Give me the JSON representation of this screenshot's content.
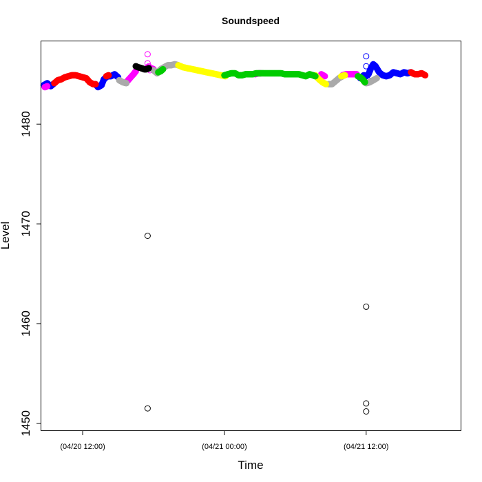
{
  "chart_data": {
    "type": "scatter",
    "title": "Soundspeed",
    "xlabel": "Time",
    "ylabel": "Level",
    "x_unit": "hours",
    "xlim": [
      8.5,
      44.0
    ],
    "ylim": [
      1449.3,
      1488.3
    ],
    "x_ticks": [
      {
        "value": 12,
        "label": "(04/20 12:00)"
      },
      {
        "value": 24,
        "label": "(04/21 00:00)"
      },
      {
        "value": 36,
        "label": "(04/21 12:00)"
      }
    ],
    "y_ticks": [
      {
        "value": 1450,
        "label": "1450"
      },
      {
        "value": 1460,
        "label": "1460"
      },
      {
        "value": 1470,
        "label": "1470"
      },
      {
        "value": 1480,
        "label": "1480"
      }
    ],
    "grid": false,
    "legend": "none",
    "series": [
      {
        "color": "#0000ff",
        "segments": [
          [
            [
              8.7,
              1483.9
            ],
            [
              9.0,
              1484.1
            ],
            [
              9.3,
              1483.8
            ],
            [
              9.6,
              1484.1
            ]
          ],
          [
            [
              13.1,
              1484.0
            ],
            [
              13.3,
              1483.7
            ],
            [
              13.6,
              1483.9
            ],
            [
              13.8,
              1484.5
            ],
            [
              14.1,
              1484.8
            ],
            [
              14.4,
              1484.8
            ],
            [
              14.7,
              1485.0
            ],
            [
              15.0,
              1484.7
            ]
          ],
          [
            [
              35.5,
              1484.6
            ],
            [
              35.8,
              1484.9
            ],
            [
              36.0,
              1484.8
            ],
            [
              36.2,
              1485.0
            ],
            [
              36.4,
              1485.6
            ],
            [
              36.6,
              1486.0
            ],
            [
              36.8,
              1485.8
            ],
            [
              37.1,
              1485.2
            ],
            [
              37.4,
              1484.9
            ],
            [
              37.7,
              1484.8
            ],
            [
              38.0,
              1484.9
            ],
            [
              38.3,
              1485.2
            ],
            [
              38.6,
              1485.1
            ],
            [
              38.9,
              1485.0
            ],
            [
              39.2,
              1485.2
            ],
            [
              39.5,
              1485.1
            ],
            [
              39.8,
              1485.2
            ]
          ]
        ],
        "outliers": [
          [
            36.0,
            1486.8
          ],
          [
            36.0,
            1485.8
          ],
          [
            36.0,
            1484.8
          ],
          [
            36.1,
            1484.5
          ]
        ]
      },
      {
        "color": "#ff0000",
        "segments": [
          [
            [
              9.6,
              1484.1
            ],
            [
              9.9,
              1484.4
            ],
            [
              10.2,
              1484.5
            ],
            [
              10.5,
              1484.7
            ],
            [
              10.8,
              1484.8
            ],
            [
              11.1,
              1484.9
            ],
            [
              11.4,
              1484.9
            ],
            [
              11.7,
              1484.8
            ],
            [
              12.0,
              1484.7
            ],
            [
              12.3,
              1484.6
            ],
            [
              12.6,
              1484.2
            ],
            [
              12.9,
              1484.0
            ],
            [
              13.1,
              1484.0
            ]
          ],
          [
            [
              14.0,
              1484.8
            ],
            [
              14.2,
              1484.9
            ]
          ],
          [
            [
              39.8,
              1485.2
            ],
            [
              40.1,
              1485.0
            ],
            [
              40.4,
              1485.0
            ],
            [
              40.7,
              1485.1
            ],
            [
              41.0,
              1484.9
            ]
          ]
        ],
        "outliers": []
      },
      {
        "color": "#ff00ff",
        "segments": [
          [
            [
              8.8,
              1483.7
            ],
            [
              9.0,
              1483.8
            ]
          ],
          [
            [
              15.7,
              1484.2
            ],
            [
              16.0,
              1484.6
            ],
            [
              16.3,
              1485.0
            ],
            [
              16.5,
              1485.3
            ]
          ],
          [
            [
              17.5,
              1485.7
            ],
            [
              17.8,
              1485.6
            ],
            [
              18.0,
              1485.5
            ]
          ],
          [
            [
              26.6,
              1485.0
            ],
            [
              26.9,
              1485.1
            ],
            [
              27.1,
              1485.1
            ]
          ],
          [
            [
              32.2,
              1485.0
            ],
            [
              32.5,
              1484.8
            ]
          ],
          [
            [
              34.0,
              1484.9
            ],
            [
              34.3,
              1485.0
            ],
            [
              34.6,
              1485.0
            ],
            [
              34.9,
              1485.0
            ],
            [
              35.2,
              1485.0
            ]
          ]
        ],
        "outliers": [
          [
            17.5,
            1487.0
          ],
          [
            17.5,
            1486.1
          ],
          [
            17.6,
            1485.8
          ],
          [
            17.6,
            1485.7
          ],
          [
            17.4,
            1485.6
          ],
          [
            17.7,
            1485.4
          ]
        ]
      },
      {
        "color": "#aaaaaa",
        "segments": [
          [
            [
              15.1,
              1484.4
            ],
            [
              15.4,
              1484.2
            ],
            [
              15.7,
              1484.1
            ]
          ],
          [
            [
              18.0,
              1485.4
            ],
            [
              18.3,
              1485.1
            ],
            [
              18.6,
              1485.5
            ],
            [
              18.9,
              1485.7
            ],
            [
              19.2,
              1485.9
            ],
            [
              19.5,
              1485.9
            ],
            [
              19.8,
              1486.0
            ],
            [
              20.1,
              1485.9
            ]
          ],
          [
            [
              32.8,
              1484.0
            ],
            [
              33.1,
              1484.0
            ],
            [
              33.4,
              1484.3
            ],
            [
              33.7,
              1484.6
            ],
            [
              34.0,
              1484.8
            ]
          ],
          [
            [
              35.8,
              1484.3
            ],
            [
              36.0,
              1484.1
            ],
            [
              36.3,
              1484.2
            ],
            [
              36.6,
              1484.4
            ],
            [
              36.9,
              1484.6
            ]
          ]
        ],
        "outliers": []
      },
      {
        "color": "#000000",
        "segments": [
          [
            [
              16.5,
              1485.8
            ],
            [
              16.7,
              1485.7
            ],
            [
              17.0,
              1485.6
            ],
            [
              17.2,
              1485.5
            ],
            [
              17.4,
              1485.5
            ],
            [
              17.6,
              1485.6
            ]
          ]
        ],
        "outliers": [
          [
            17.5,
            1468.8
          ],
          [
            17.5,
            1451.5
          ],
          [
            36.0,
            1461.7
          ],
          [
            36.0,
            1452.0
          ],
          [
            36.0,
            1451.2
          ]
        ]
      },
      {
        "color": "#ffff00",
        "segments": [
          [
            [
              20.1,
              1485.9
            ],
            [
              20.5,
              1485.7
            ],
            [
              20.9,
              1485.6
            ],
            [
              21.3,
              1485.5
            ],
            [
              21.7,
              1485.4
            ],
            [
              22.1,
              1485.3
            ],
            [
              22.5,
              1485.2
            ],
            [
              22.9,
              1485.1
            ],
            [
              23.3,
              1485.0
            ],
            [
              23.7,
              1484.9
            ],
            [
              24.1,
              1484.8
            ]
          ],
          [
            [
              31.7,
              1484.9
            ],
            [
              32.0,
              1484.5
            ],
            [
              32.3,
              1484.2
            ],
            [
              32.6,
              1484.0
            ]
          ],
          [
            [
              33.9,
              1484.8
            ],
            [
              34.2,
              1484.9
            ]
          ]
        ],
        "outliers": []
      },
      {
        "color": "#00cc00",
        "segments": [
          [
            [
              18.4,
              1485.2
            ],
            [
              18.6,
              1485.3
            ],
            [
              18.8,
              1485.5
            ]
          ],
          [
            [
              24.0,
              1484.9
            ],
            [
              24.3,
              1485.0
            ],
            [
              24.6,
              1485.1
            ],
            [
              24.9,
              1485.1
            ],
            [
              25.2,
              1484.9
            ],
            [
              25.5,
              1484.9
            ],
            [
              25.8,
              1485.0
            ],
            [
              26.1,
              1485.0
            ],
            [
              26.4,
              1485.0
            ],
            [
              26.7,
              1485.1
            ],
            [
              27.0,
              1485.1
            ],
            [
              27.3,
              1485.1
            ],
            [
              27.6,
              1485.1
            ],
            [
              27.9,
              1485.1
            ],
            [
              28.2,
              1485.1
            ],
            [
              28.5,
              1485.1
            ],
            [
              28.8,
              1485.1
            ],
            [
              29.1,
              1485.0
            ],
            [
              29.4,
              1485.0
            ],
            [
              29.7,
              1485.0
            ],
            [
              30.0,
              1485.0
            ],
            [
              30.3,
              1485.0
            ],
            [
              30.6,
              1484.9
            ],
            [
              30.9,
              1484.8
            ],
            [
              31.2,
              1485.0
            ],
            [
              31.5,
              1484.9
            ],
            [
              31.7,
              1484.8
            ]
          ],
          [
            [
              35.3,
              1484.8
            ],
            [
              35.5,
              1484.7
            ],
            [
              35.7,
              1484.5
            ],
            [
              35.9,
              1484.2
            ]
          ]
        ],
        "outliers": []
      }
    ]
  }
}
